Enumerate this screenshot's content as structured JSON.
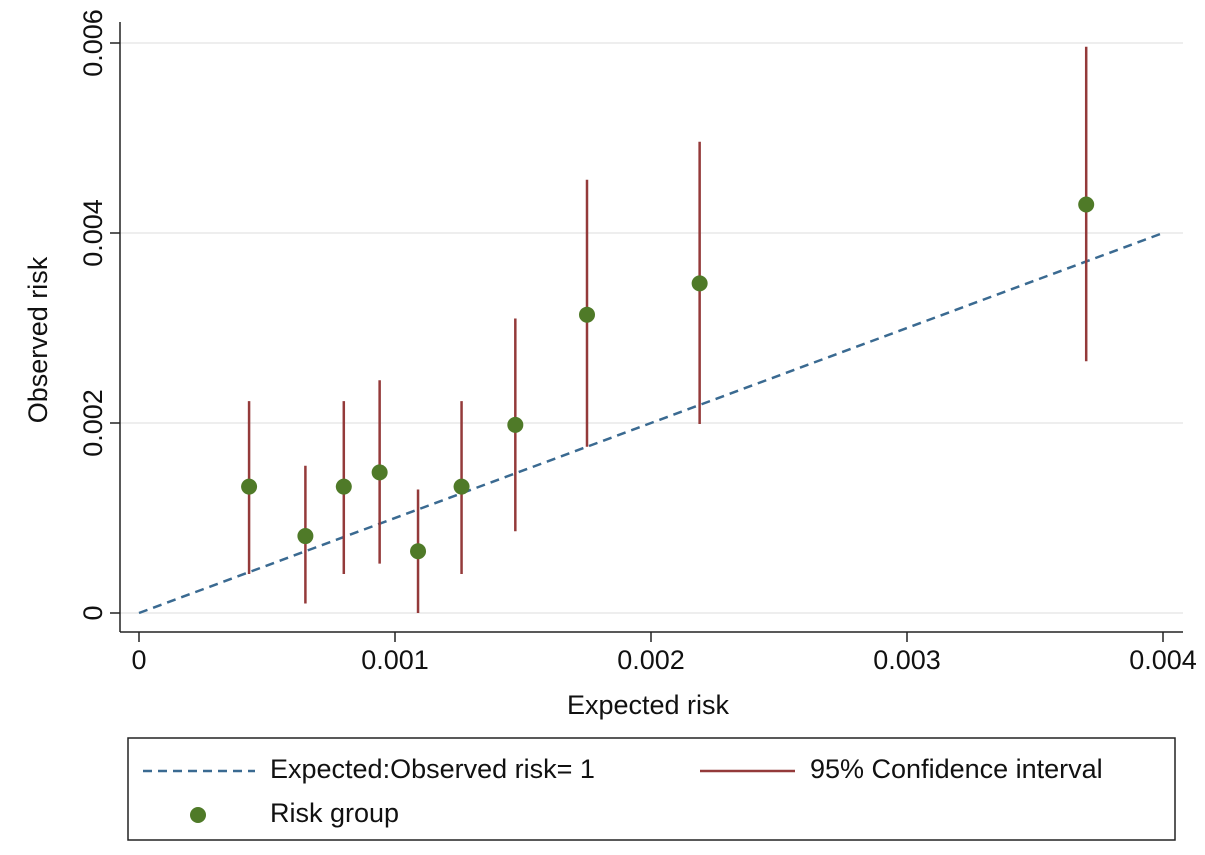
{
  "chart_data": {
    "type": "scatter",
    "x_label": "Expected risk",
    "y_label": "Observed risk",
    "xlim": [
      0,
      0.004
    ],
    "xticks": [
      0,
      0.001,
      0.002,
      0.003,
      0.004
    ],
    "ylim": [
      0,
      0.006
    ],
    "yticks": [
      0,
      0.002,
      0.004,
      0.006
    ],
    "grid": true,
    "reference_line": {
      "name": "Expected:Observed risk= 1",
      "color": "#3a6a91",
      "x": [
        0,
        0.004
      ],
      "y": [
        0,
        0.004
      ]
    },
    "series": [
      {
        "name": "Risk group",
        "color": "#4f7a28",
        "ci_name": "95% Confidence interval",
        "ci_color": "#943a3a",
        "x": [
          0.00043,
          0.00065,
          0.0008,
          0.00094,
          0.00109,
          0.00126,
          0.00147,
          0.00175,
          0.00219,
          0.0037
        ],
        "values": [
          0.00133,
          0.00081,
          0.00133,
          0.00148,
          0.00065,
          0.00133,
          0.00198,
          0.00314,
          0.00347,
          0.0043
        ],
        "lower": [
          0.00041,
          0.0001,
          0.00041,
          0.00052,
          0,
          0.00041,
          0.00086,
          0.00175,
          0.00199,
          0.00265
        ],
        "upper": [
          0.00223,
          0.00155,
          0.00223,
          0.00245,
          0.0013,
          0.00223,
          0.0031,
          0.00456,
          0.00496,
          0.00596
        ]
      }
    ],
    "legend": "bottom"
  }
}
